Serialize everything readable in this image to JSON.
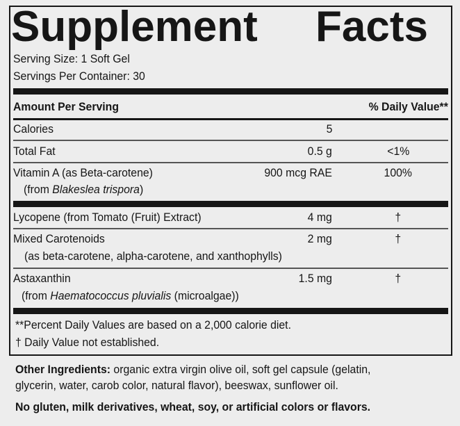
{
  "title": {
    "word1": "Supplement",
    "word2": "Facts"
  },
  "serving_size": "Serving Size: 1 Soft Gel",
  "servings_per_container": "Servings Per Container: 30",
  "header": {
    "amount": "Amount Per Serving",
    "dv": "% Daily Value**"
  },
  "rows": [
    {
      "name": "Calories",
      "amount": "5",
      "dv": ""
    },
    {
      "name": "Total Fat",
      "amount": "0.5 g",
      "dv": "<1%"
    },
    {
      "name": "Vitamin A (as Beta-carotene)",
      "sub_prefix": "(from ",
      "sub_italic": "Blakeslea trispora",
      "sub_suffix": ")",
      "amount": "900 mcg RAE",
      "dv": "100%"
    },
    {
      "name": "Lycopene (from Tomato (Fruit) Extract)",
      "amount": "4 mg",
      "dv": "†"
    },
    {
      "name": "Mixed Carotenoids",
      "sub": "(as beta-carotene, alpha-carotene, and xanthophylls)",
      "amount": "2 mg",
      "dv": "†"
    },
    {
      "name": "Astaxanthin",
      "sub_prefix": "(from ",
      "sub_italic": "Haematococcus pluvialis",
      "sub_suffix": " (microalgae))",
      "amount": "1.5 mg",
      "dv": "†"
    }
  ],
  "footnotes": [
    "**Percent Daily Values are based on a 2,000 calorie diet.",
    "† Daily Value not established."
  ],
  "other_ingredients": {
    "label": "Other Ingredients:",
    "line1": " organic extra virgin olive oil, soft gel capsule (gelatin,",
    "line2": "glycerin, water, carob color, natural flavor), beeswax, sunflower oil."
  },
  "allergen_statement": "No gluten, milk derivatives, wheat, soy, or artificial colors or flavors."
}
